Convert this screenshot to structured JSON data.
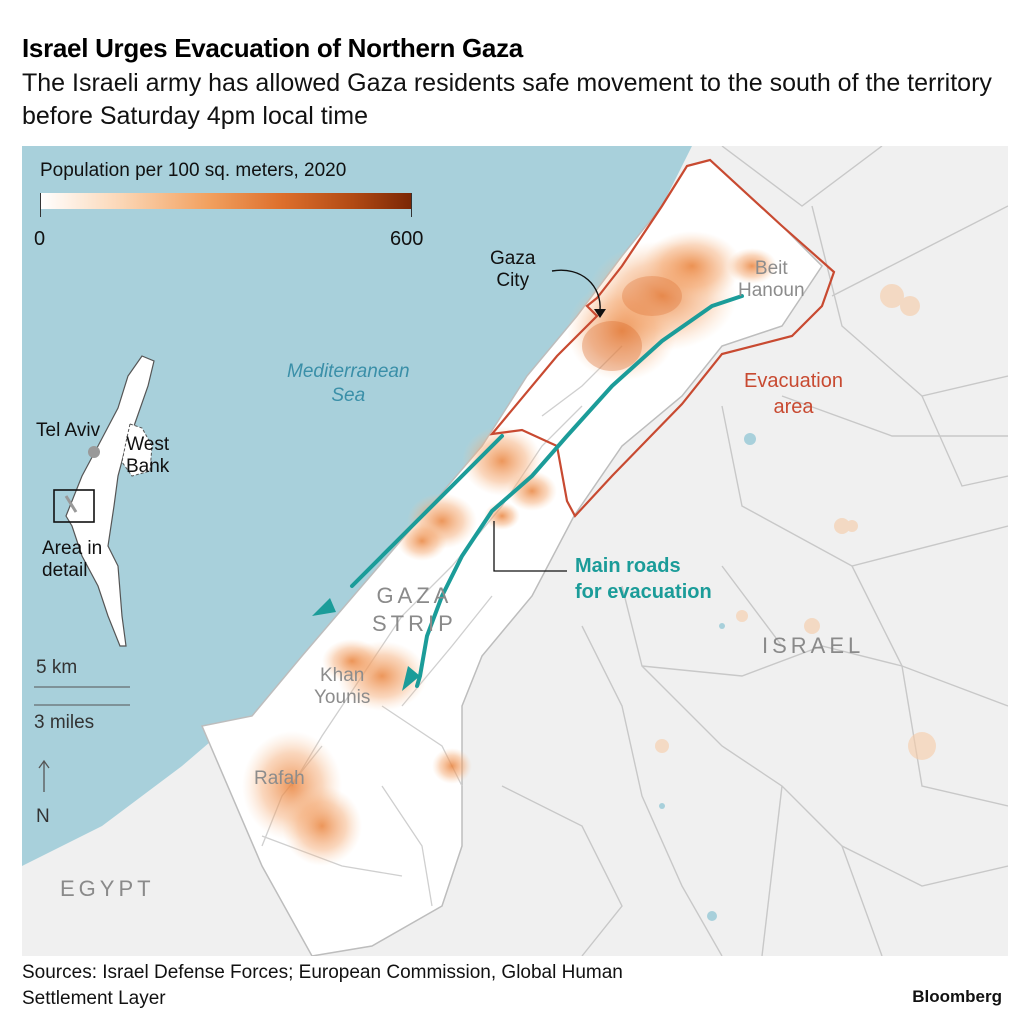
{
  "title": "Israel Urges Evacuation of Northern Gaza",
  "subtitle": "The Israeli army has allowed Gaza residents safe movement to the south of the territory before Saturday 4pm local time",
  "legend": {
    "title": "Population per 100 sq. meters, 2020",
    "min": "0",
    "max": "600"
  },
  "labels": {
    "sea": [
      "Mediterranean",
      "Sea"
    ],
    "gaza_city": [
      "Gaza",
      "City"
    ],
    "beit_hanoun": [
      "Beit",
      "Hanoun"
    ],
    "evacuation_area": [
      "Evacuation",
      "area"
    ],
    "main_roads": [
      "Main roads",
      "for evacuation"
    ],
    "gaza_strip": [
      "GAZA",
      "STRIP"
    ],
    "khan_younis": [
      "Khan",
      "Younis"
    ],
    "rafah": "Rafah",
    "israel": "ISRAEL",
    "egypt": "EGYPT"
  },
  "locator": {
    "tel_aviv": "Tel Aviv",
    "west_bank": [
      "West",
      "Bank"
    ],
    "area_in_detail": [
      "Area in",
      "detail"
    ]
  },
  "scale": {
    "km": "5 km",
    "miles": "3 miles",
    "north": "N"
  },
  "colors": {
    "sea": "#a8d0db",
    "land": "#f0f0f0",
    "gaza": "#ffffff",
    "population": "#f2a160",
    "evacuation": "#c84a31",
    "roads": "#1b9c99"
  },
  "sources": [
    "Sources: Israel Defense Forces; European Commission, Global Human",
    "Settlement Layer"
  ],
  "brand": "Bloomberg"
}
